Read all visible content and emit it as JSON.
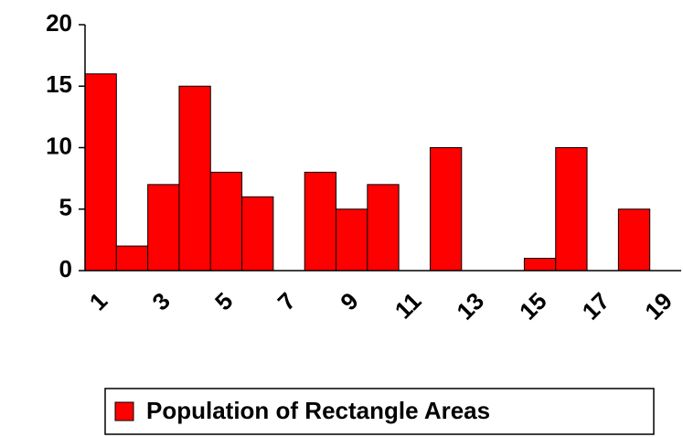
{
  "chart_data": {
    "type": "bar",
    "categories": [
      "1",
      null,
      "3",
      null,
      "5",
      null,
      "7",
      null,
      "9",
      null,
      "11",
      null,
      "13",
      null,
      "15",
      null,
      "17",
      null,
      "19"
    ],
    "values": [
      16,
      2,
      7,
      15,
      8,
      6,
      0,
      8,
      5,
      7,
      0,
      10,
      0,
      0,
      1,
      10,
      0,
      5,
      0
    ],
    "series_name": "Population of Rectangle Areas",
    "color": "#ff0000",
    "ylim": [
      0,
      20
    ],
    "yticks": [
      0,
      5,
      10,
      15,
      20
    ],
    "grid": false,
    "legend": "bottom"
  }
}
